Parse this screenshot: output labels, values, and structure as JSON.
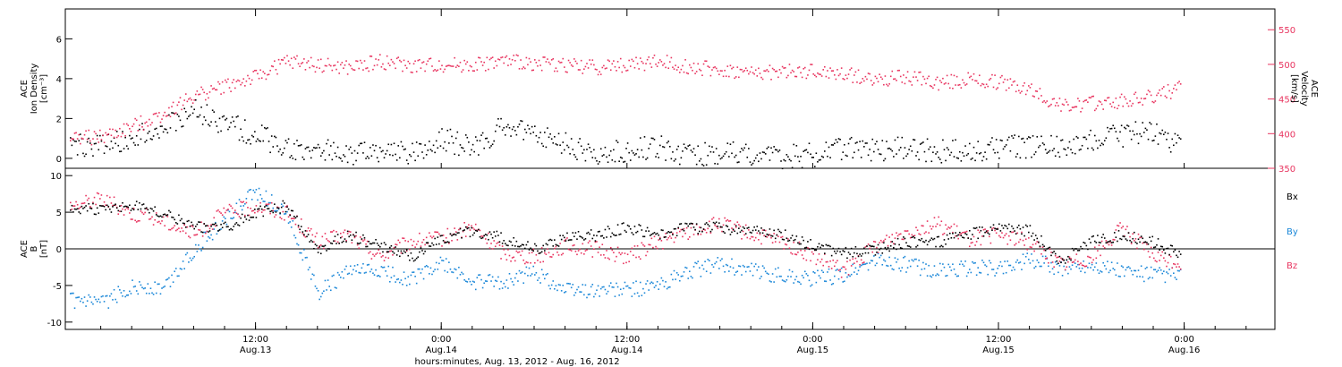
{
  "colors": {
    "black": "#000000",
    "red": "#e8345f",
    "blue": "#1a87d8"
  },
  "chart_data": [
    {
      "type": "scatter",
      "panel": "top",
      "ylabel_lines": [
        "ACE",
        "Ion Density",
        "[cm⁻³]"
      ],
      "y2label_lines": [
        "ACE",
        "Velocity",
        "[km/s]"
      ],
      "ylim": [
        -0.5,
        7.5
      ],
      "y_ticks": [
        "0",
        "2",
        "4",
        "6"
      ],
      "y2lim": [
        350,
        580
      ],
      "y2_ticks": [
        "350",
        "400",
        "450",
        "500",
        "550"
      ],
      "series": [
        {
          "color": "black",
          "axis": "left",
          "values_x": [
            0,
            2,
            4,
            6,
            8,
            10,
            12,
            14,
            16,
            18,
            20,
            22,
            24,
            26,
            28,
            30,
            32,
            34,
            36,
            38,
            40,
            42,
            44,
            46,
            48,
            50,
            52,
            54,
            56,
            58,
            60,
            62,
            64,
            66,
            68,
            70,
            72
          ],
          "values_y": [
            0.6,
            0.8,
            1.0,
            1.6,
            2.4,
            1.8,
            1.2,
            0.6,
            0.5,
            0.3,
            0.4,
            0.2,
            1.0,
            0.6,
            1.6,
            1.2,
            0.8,
            0.1,
            0.5,
            0.6,
            0.2,
            0.3,
            0.2,
            0.1,
            0.2,
            0.6,
            0.5,
            0.5,
            0.4,
            0.4,
            0.6,
            0.6,
            0.7,
            1.0,
            1.2,
            1.4,
            0.5
          ]
        },
        {
          "color": "red",
          "axis": "right",
          "values_x": [
            0,
            2,
            4,
            6,
            8,
            10,
            12,
            14,
            16,
            18,
            20,
            22,
            24,
            26,
            28,
            30,
            32,
            34,
            36,
            38,
            40,
            42,
            44,
            46,
            48,
            50,
            52,
            54,
            56,
            58,
            60,
            62,
            64,
            66,
            68,
            70,
            72
          ],
          "values_y": [
            395,
            395,
            410,
            430,
            455,
            470,
            482,
            505,
            500,
            495,
            505,
            498,
            500,
            500,
            505,
            503,
            500,
            497,
            500,
            505,
            498,
            492,
            488,
            490,
            490,
            487,
            478,
            483,
            475,
            478,
            475,
            465,
            440,
            445,
            448,
            455,
            468
          ]
        }
      ]
    },
    {
      "type": "scatter",
      "panel": "bottom",
      "ylabel_lines": [
        "ACE",
        "B",
        "[nT]"
      ],
      "ylim": [
        -11,
        11
      ],
      "y_ticks": [
        "-10",
        "-5",
        "0",
        "5",
        "10"
      ],
      "legend": [
        "Bx",
        "By",
        "Bz"
      ],
      "legend_placement": "right",
      "series": [
        {
          "name": "Bx",
          "color": "black",
          "values_x": [
            0,
            2,
            4,
            6,
            8,
            10,
            12,
            14,
            16,
            18,
            20,
            22,
            24,
            26,
            28,
            30,
            32,
            34,
            36,
            38,
            40,
            42,
            44,
            46,
            48,
            50,
            52,
            54,
            56,
            58,
            60,
            62,
            64,
            66,
            68,
            70,
            72
          ],
          "values_y": [
            5.5,
            5.5,
            6.0,
            5.0,
            3.0,
            3.0,
            5.0,
            6.0,
            0.0,
            2.0,
            0.5,
            -1.0,
            1.5,
            2.5,
            1.5,
            0.0,
            1.5,
            2.0,
            3.0,
            2.0,
            3.0,
            3.0,
            2.5,
            2.0,
            0.5,
            -0.5,
            0.0,
            1.0,
            1.0,
            2.0,
            3.0,
            2.5,
            -1.5,
            1.0,
            2.0,
            1.0,
            -1.0
          ]
        },
        {
          "name": "By",
          "color": "blue",
          "values_x": [
            0,
            2,
            4,
            6,
            8,
            10,
            12,
            14,
            16,
            18,
            20,
            22,
            24,
            26,
            28,
            30,
            32,
            34,
            36,
            38,
            40,
            42,
            44,
            46,
            48,
            50,
            52,
            54,
            56,
            58,
            60,
            62,
            64,
            66,
            68,
            70,
            72
          ],
          "values_y": [
            -7.0,
            -7.5,
            -5.0,
            -5.5,
            0.0,
            4.0,
            8.0,
            5.0,
            -6.0,
            -3.0,
            -3.0,
            -4.0,
            -2.0,
            -4.5,
            -4.5,
            -3.0,
            -5.5,
            -5.5,
            -5.5,
            -5.0,
            -3.0,
            -2.0,
            -3.0,
            -3.5,
            -4.0,
            -3.5,
            -1.5,
            -2.0,
            -3.0,
            -2.5,
            -2.5,
            -1.5,
            -2.5,
            -2.0,
            -3.0,
            -3.5,
            -3.5
          ]
        },
        {
          "name": "Bz",
          "color": "red",
          "values_x": [
            0,
            2,
            4,
            6,
            8,
            10,
            12,
            14,
            16,
            18,
            20,
            22,
            24,
            26,
            28,
            30,
            32,
            34,
            36,
            38,
            40,
            42,
            44,
            46,
            48,
            50,
            52,
            54,
            56,
            58,
            60,
            62,
            64,
            66,
            68,
            70,
            72
          ],
          "values_y": [
            6.0,
            7.0,
            5.0,
            4.0,
            2.0,
            5.0,
            6.0,
            5.0,
            1.0,
            2.0,
            -1.0,
            1.0,
            1.5,
            3.0,
            -0.5,
            -1.0,
            0.5,
            0.0,
            -1.0,
            1.0,
            2.5,
            3.5,
            2.0,
            1.0,
            -1.0,
            -3.0,
            0.5,
            2.5,
            3.5,
            1.5,
            2.0,
            1.0,
            -2.0,
            -1.0,
            3.0,
            -1.0,
            -2.0
          ]
        }
      ]
    }
  ],
  "time_axis": {
    "ticks": [
      {
        "time": "12:00",
        "date": "Aug.13"
      },
      {
        "time": "0:00",
        "date": "Aug.14"
      },
      {
        "time": "12:00",
        "date": "Aug.14"
      },
      {
        "time": "0:00",
        "date": "Aug.15"
      },
      {
        "time": "12:00",
        "date": "Aug.15"
      },
      {
        "time": "0:00",
        "date": "Aug.16"
      }
    ],
    "xlabel": "hours:minutes, Aug. 13, 2012 - Aug. 16, 2012"
  }
}
